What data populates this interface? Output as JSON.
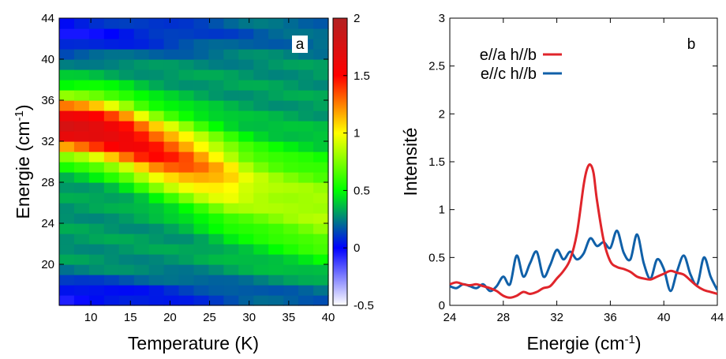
{
  "chart_data": [
    {
      "type": "heatmap",
      "panel_label": "a",
      "xlabel": "Temperature (K)",
      "ylabel_main": "Energie (cm",
      "ylabel_sup": "-1",
      "ylabel_close": ")",
      "xlim": [
        6,
        40
      ],
      "ylim": [
        16,
        44
      ],
      "xticks": [
        "10",
        "15",
        "20",
        "25",
        "30",
        "35",
        "40"
      ],
      "yticks": [
        "20",
        "24",
        "28",
        "32",
        "36",
        "40",
        "44"
      ],
      "colorbar": {
        "range": [
          -0.5,
          2
        ],
        "ticks": [
          "-0.5",
          "0",
          "0.5",
          "1",
          "1.5",
          "2"
        ],
        "colors": [
          "#ffffff",
          "#0000ff",
          "#00ff00",
          "#ffff00",
          "#ff0000",
          "#b22222"
        ]
      },
      "peak_ridge": {
        "temperature_K": [
          6,
          10,
          14,
          18,
          22,
          26,
          28,
          30,
          34,
          40
        ],
        "energy_cm-1": [
          33.6,
          33.3,
          32.5,
          31.2,
          30.1,
          28.9,
          28.3,
          27.8,
          27,
          26
        ],
        "intensity": [
          1.5,
          1.45,
          1.35,
          1.2,
          1.05,
          0.85,
          0.75,
          0.6,
          0.5,
          0.45
        ]
      }
    },
    {
      "type": "line",
      "panel_label": "b",
      "xlabel_main": "Energie (cm",
      "xlabel_sup": "-1",
      "xlabel_close": ")",
      "ylabel": "Intensité",
      "xlim": [
        24,
        44
      ],
      "ylim": [
        0,
        3
      ],
      "xticks": [
        "24",
        "28",
        "32",
        "36",
        "40",
        "44"
      ],
      "yticks": [
        "0",
        "0.5",
        "1",
        "1.5",
        "2",
        "2.5",
        "3"
      ],
      "legend_position": "top-left",
      "series": [
        {
          "name": "e//a h//b",
          "color": "#e0252b",
          "x": [
            24,
            24.5,
            25,
            25.5,
            26,
            26.5,
            27,
            27.5,
            28,
            28.5,
            29,
            29.5,
            30,
            30.5,
            31,
            31.5,
            32,
            32.5,
            33,
            33.5,
            34,
            34.25,
            34.5,
            34.75,
            35,
            35.5,
            36,
            36.5,
            37,
            37.5,
            38,
            38.5,
            39,
            39.5,
            40,
            40.5,
            41,
            41.5,
            42,
            42.5,
            43,
            43.5,
            44
          ],
          "y": [
            0.22,
            0.24,
            0.22,
            0.21,
            0.22,
            0.2,
            0.18,
            0.15,
            0.1,
            0.08,
            0.1,
            0.14,
            0.12,
            0.14,
            0.18,
            0.2,
            0.28,
            0.36,
            0.48,
            0.75,
            1.25,
            1.42,
            1.47,
            1.38,
            1.1,
            0.68,
            0.46,
            0.4,
            0.38,
            0.35,
            0.3,
            0.28,
            0.27,
            0.3,
            0.33,
            0.36,
            0.34,
            0.32,
            0.26,
            0.2,
            0.16,
            0.14,
            0.12
          ]
        },
        {
          "name": "e//c h//b",
          "color": "#1060a8",
          "x": [
            24,
            24.5,
            25,
            25.5,
            26,
            26.5,
            27,
            27.5,
            28,
            28.5,
            29,
            29.5,
            30,
            30.5,
            31,
            31.5,
            32,
            32.5,
            33,
            33.5,
            34,
            34.5,
            35,
            35.5,
            36,
            36.5,
            37,
            37.5,
            38,
            38.5,
            39,
            39.5,
            40,
            40.5,
            41,
            41.5,
            42,
            42.5,
            43,
            43.5,
            44
          ],
          "y": [
            0.2,
            0.18,
            0.22,
            0.2,
            0.18,
            0.22,
            0.15,
            0.2,
            0.3,
            0.22,
            0.52,
            0.3,
            0.44,
            0.56,
            0.3,
            0.42,
            0.58,
            0.48,
            0.56,
            0.48,
            0.54,
            0.7,
            0.62,
            0.66,
            0.6,
            0.78,
            0.55,
            0.48,
            0.74,
            0.44,
            0.28,
            0.48,
            0.38,
            0.15,
            0.36,
            0.52,
            0.32,
            0.22,
            0.5,
            0.3,
            0.16
          ]
        }
      ]
    }
  ]
}
